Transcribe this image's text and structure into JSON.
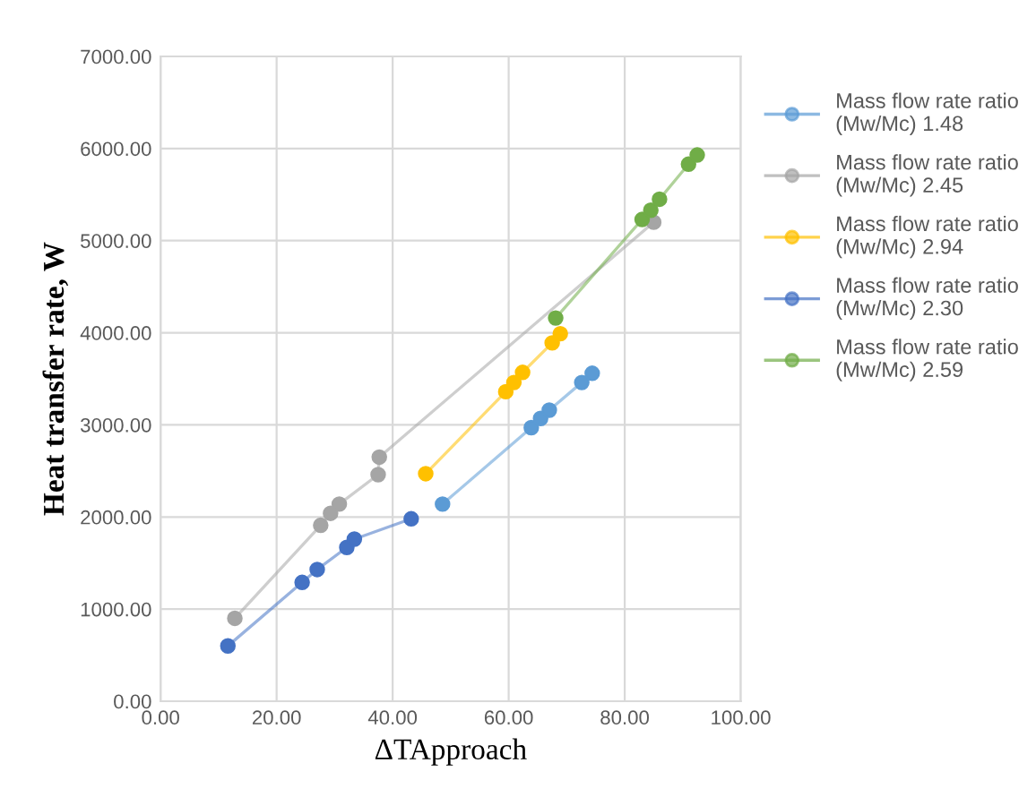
{
  "chart_data": {
    "type": "line",
    "xlabel": "ΔTApproach",
    "ylabel": "Heat transfer rate, W",
    "series": [
      {
        "name": "Mass flow rate ratio (Mw/Mc) 1.48",
        "color": "#5b9bd5",
        "x": [
          48.6,
          63.9,
          65.5,
          67.0,
          72.6,
          74.4
        ],
        "values": [
          2140,
          2970,
          3070,
          3160,
          3460,
          3560
        ]
      },
      {
        "name": "Mass flow rate ratio (Mw/Mc) 2.45",
        "color": "#a5a5a5",
        "x": [
          12.8,
          27.6,
          29.3,
          30.8,
          37.5,
          37.7,
          85.0
        ],
        "values": [
          900,
          1910,
          2040,
          2140,
          2460,
          2650,
          5200
        ]
      },
      {
        "name": "Mass flow rate ratio (Mw/Mc) 2.94",
        "color": "#ffc000",
        "x": [
          45.7,
          59.5,
          60.9,
          62.4,
          67.5,
          68.9
        ],
        "values": [
          2470,
          3360,
          3460,
          3570,
          3890,
          3990
        ]
      },
      {
        "name": "Mass flow rate ratio (Mw/Mc) 2.30",
        "color": "#4472c4",
        "x": [
          11.6,
          24.4,
          27.0,
          32.1,
          33.4,
          43.2
        ],
        "values": [
          600,
          1290,
          1430,
          1670,
          1760,
          1980
        ]
      },
      {
        "name": "Mass flow rate ratio (Mw/Mc) 2.59",
        "color": "#70ad47",
        "x": [
          68.1,
          83.0,
          84.5,
          86.0,
          91.0,
          92.5
        ],
        "values": [
          4160,
          5230,
          5330,
          5450,
          5830,
          5930
        ]
      }
    ],
    "marker": "circle",
    "line_style": "solid",
    "grid": true,
    "legend": "right",
    "xlim": [
      0,
      100
    ],
    "ylim": [
      0,
      7000
    ],
    "xticks": [
      {
        "value": 0,
        "label": "0.00"
      },
      {
        "value": 20,
        "label": "20.00"
      },
      {
        "value": 40,
        "label": "40.00"
      },
      {
        "value": 60,
        "label": "60.00"
      },
      {
        "value": 80,
        "label": "80.00"
      },
      {
        "value": 100,
        "label": "100.00"
      }
    ],
    "yticks": [
      {
        "value": 0,
        "label": "0.00"
      },
      {
        "value": 1000,
        "label": "1000.00"
      },
      {
        "value": 2000,
        "label": "2000.00"
      },
      {
        "value": 3000,
        "label": "3000.00"
      },
      {
        "value": 4000,
        "label": "4000.00"
      },
      {
        "value": 5000,
        "label": "5000.00"
      },
      {
        "value": 6000,
        "label": "6000.00"
      },
      {
        "value": 7000,
        "label": "7000.00"
      }
    ]
  }
}
